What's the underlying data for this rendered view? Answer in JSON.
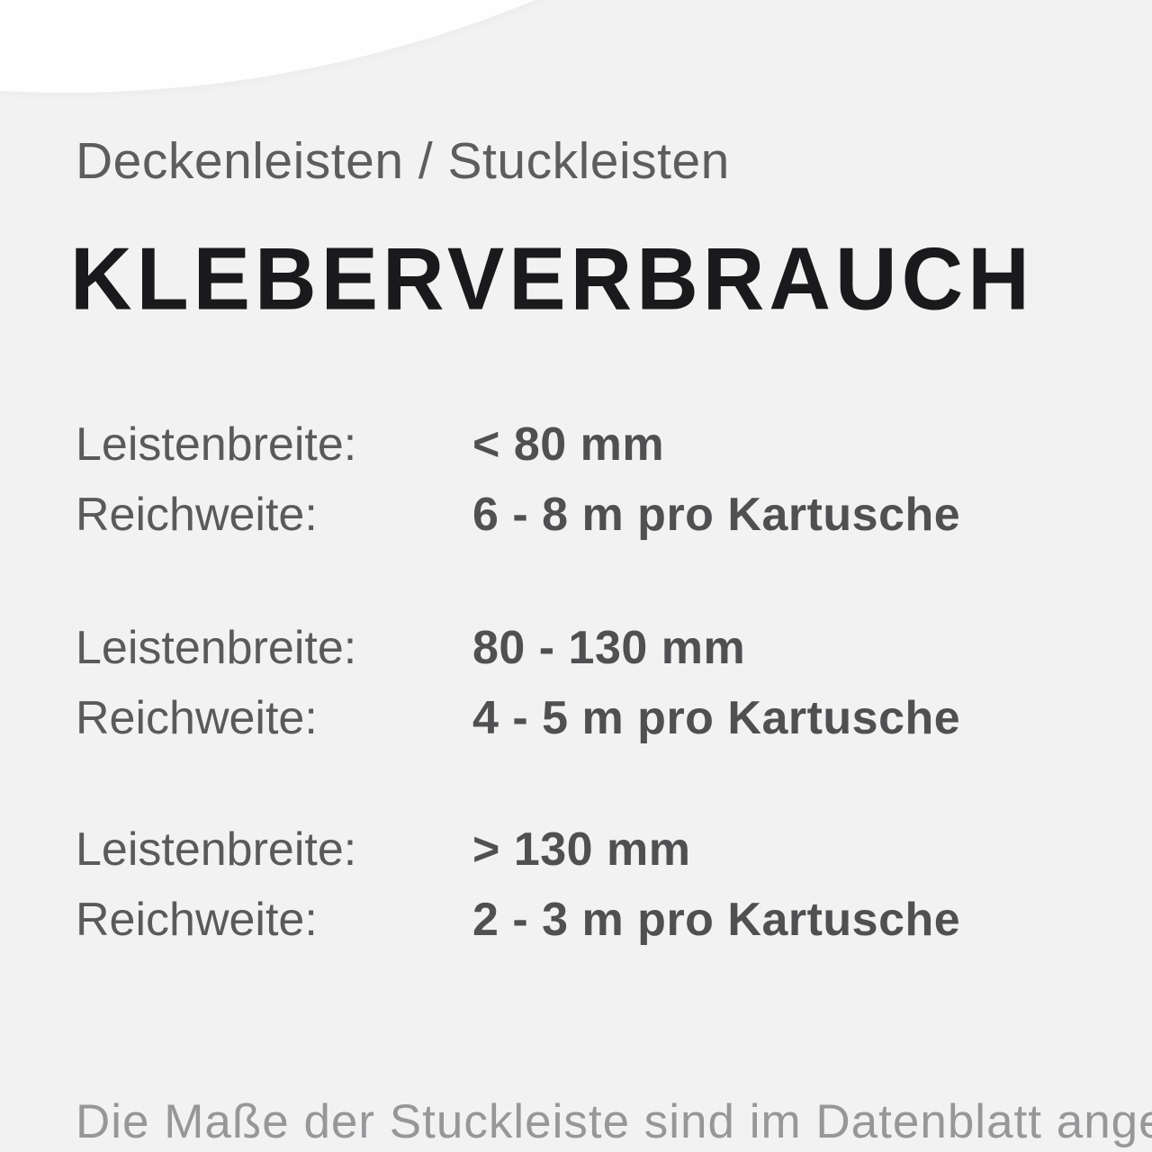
{
  "page": {
    "background_color": "#f2f2f3",
    "curve_color": "#fefefe"
  },
  "header": {
    "subtitle": "Deckenleisten / Stuckleisten",
    "title": "KLEBERVERBRAUCH"
  },
  "specs": [
    {
      "rows": [
        {
          "label": "Leistenbreite:",
          "value": "< 80 mm"
        },
        {
          "label": "Reichweite:",
          "value": "6 - 8 m pro Kartusche"
        }
      ]
    },
    {
      "rows": [
        {
          "label": "Leistenbreite:",
          "value": "80 - 130 mm"
        },
        {
          "label": "Reichweite:",
          "value": "4 - 5 m pro Kartusche"
        }
      ]
    },
    {
      "rows": [
        {
          "label": "Leistenbreite:",
          "value": "> 130 mm"
        },
        {
          "label": "Reichweite:",
          "value": "2 - 3 m pro Kartusche"
        }
      ]
    }
  ],
  "footer": {
    "note": "Die Maße der Stuckleiste sind im Datenblatt angegeben."
  }
}
